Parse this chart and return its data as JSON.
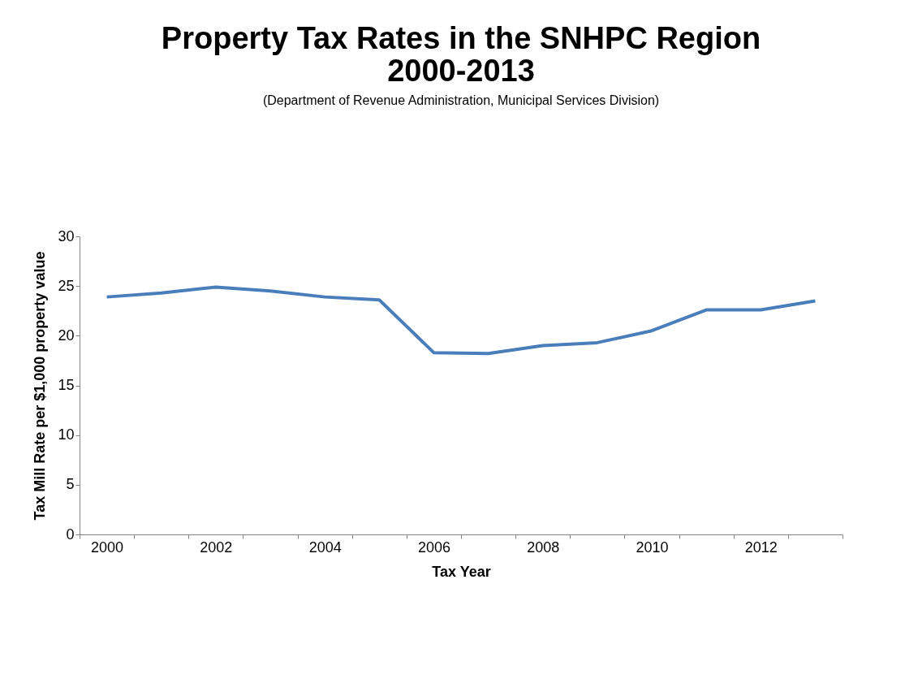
{
  "chart_data": {
    "type": "line",
    "title": "Property Tax Rates in the SNHPC Region\n2000-2013",
    "subtitle": "(Department of Revenue Administration, Municipal Services Division)",
    "xlabel": "Tax Year",
    "ylabel": "Tax Mill Rate per $1,000 property value",
    "categories": [
      "2000",
      null,
      "2002",
      null,
      "2004",
      null,
      "2006",
      null,
      "2008",
      null,
      "2010",
      null,
      "2012",
      null
    ],
    "series": [
      {
        "color": "#4a7ebb",
        "values": [
          23.9,
          24.3,
          24.9,
          24.5,
          23.9,
          23.6,
          18.3,
          18.2,
          19.0,
          19.3,
          20.5,
          22.6,
          22.6,
          23.5
        ]
      }
    ],
    "ylim": [
      0,
      30
    ],
    "yticks": [
      0,
      5,
      10,
      15,
      20,
      25,
      30
    ],
    "grid": false,
    "legend": false,
    "marker": "none",
    "line_style": "solid"
  }
}
